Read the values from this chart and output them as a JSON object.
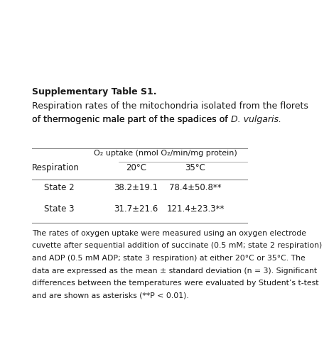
{
  "title_bold": "Supplementary Table S1.",
  "title_line2": "Respiration rates of the mitochondria isolated from the florets",
  "title_line3_normal": "of thermogenic male part of the spadices of ",
  "title_italic": "D. vulgaris",
  "title_end": ".",
  "col_header_main": "O₂ uptake (nmol O₂/min/mg protein)",
  "col_header_sub1": "20°C",
  "col_header_sub2": "35°C",
  "col_left": "Respiration",
  "rows": [
    [
      "State 2",
      "38.2±19.1",
      "78.4±50.8**"
    ],
    [
      "State 3",
      "31.7±21.6",
      "121.4±23.3**"
    ]
  ],
  "footnote_lines": [
    "The rates of oxygen uptake were measured using an oxygen electrode",
    "cuvette after sequential addition of succinate (0.5 mM; state 2 respiration)",
    "and ADP (0.5 mM ADP; state 3 respiration) at either 20°C or 35°C. The",
    "data are expressed as the mean ± standard deviation (n = 3). Significant",
    "differences between the temperatures were evaluated by Student’s t-test",
    "and are shown as asterisks (**P < 0.01)."
  ],
  "bg_color": "#ffffff",
  "text_color": "#1a1a1a",
  "line_color": "#888888",
  "font_size_title": 9.0,
  "font_size_table": 8.5,
  "font_size_footnote": 7.8
}
